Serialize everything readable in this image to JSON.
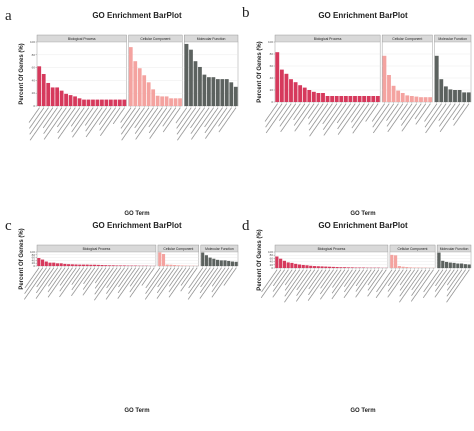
{
  "figure": {
    "panels": [
      "a",
      "b",
      "c",
      "d"
    ]
  },
  "chart_data": [
    {
      "panel": "a",
      "type": "bar",
      "title": "GO Enrichment BarPlot",
      "xlabel": "GO Term",
      "ylabel": "Percent Of Genes (%)",
      "ylim": [
        0,
        100
      ],
      "yticks": [
        0,
        20,
        40,
        60,
        80,
        100
      ],
      "grid": true,
      "facets": [
        {
          "name": "Biological Process",
          "color": "#d6395c",
          "values": [
            62,
            50,
            36,
            29,
            29,
            24,
            19,
            17,
            15,
            12,
            10,
            10,
            10,
            10,
            10,
            10,
            10,
            10,
            10,
            10
          ]
        },
        {
          "name": "Cellular Component",
          "color": "#f4a3a0",
          "values": [
            92,
            70,
            59,
            48,
            37,
            26,
            16,
            15,
            15,
            12,
            12,
            12
          ]
        },
        {
          "name": "Molecular Function",
          "color": "#5c625f",
          "values": [
            97,
            88,
            70,
            61,
            49,
            45,
            45,
            42,
            42,
            42,
            37,
            30
          ]
        }
      ]
    },
    {
      "panel": "b",
      "type": "bar",
      "title": "GO Enrichment BarPlot",
      "xlabel": "GO Term",
      "ylabel": "Percent Of Genes (%)",
      "ylim": [
        0,
        100
      ],
      "yticks": [
        0,
        20,
        40,
        60,
        80,
        100
      ],
      "grid": true,
      "facets": [
        {
          "name": "Biological Process",
          "color": "#d6395c",
          "values": [
            83,
            54,
            47,
            38,
            33,
            28,
            24,
            20,
            17,
            15,
            15,
            10,
            10,
            10,
            10,
            10,
            10,
            10,
            10,
            10,
            10,
            10,
            10
          ]
        },
        {
          "name": "Cellular Component",
          "color": "#f4a3a0",
          "values": [
            77,
            45,
            27,
            19,
            15,
            11,
            10,
            9,
            8,
            8,
            8
          ]
        },
        {
          "name": "Molecular Function",
          "color": "#5c625f",
          "values": [
            77,
            38,
            26,
            21,
            20,
            20,
            16,
            16
          ]
        }
      ]
    },
    {
      "panel": "c",
      "type": "bar",
      "title": "GO Enrichment BarPlot",
      "xlabel": "GO Term",
      "ylabel": "Percent Of Genes (%)",
      "ylim": [
        0,
        100
      ],
      "yticks": [
        0,
        20,
        40,
        60,
        80,
        100
      ],
      "grid": true,
      "facets": [
        {
          "name": "Biological Process",
          "color": "#d6395c",
          "values": [
            57,
            46,
            32,
            24,
            24,
            19,
            19,
            15,
            13,
            12,
            11,
            10,
            10,
            10,
            9,
            9,
            8,
            7,
            6,
            5,
            5,
            4,
            4,
            4,
            3,
            3,
            3,
            2,
            2,
            2,
            1,
            1
          ]
        },
        {
          "name": "Cellular Component",
          "color": "#f4a3a0",
          "values": [
            97,
            86,
            10,
            9,
            7,
            5,
            4,
            3,
            2,
            2,
            1
          ]
        },
        {
          "name": "Molecular Function",
          "color": "#5c625f",
          "values": [
            96,
            77,
            60,
            52,
            44,
            40,
            40,
            36,
            32,
            30
          ]
        }
      ]
    },
    {
      "panel": "d",
      "type": "bar",
      "title": "GO Enrichment BarPlot",
      "xlabel": "GO Term",
      "ylabel": "Percent Of Genes (%)",
      "ylim": [
        0,
        100
      ],
      "yticks": [
        0,
        20,
        40,
        60,
        80,
        100
      ],
      "grid": true,
      "facets": [
        {
          "name": "Biological Process",
          "color": "#d6395c",
          "values": [
            72,
            58,
            45,
            35,
            32,
            26,
            22,
            19,
            17,
            14,
            12,
            11,
            10,
            9,
            8,
            7,
            6,
            5,
            5,
            4,
            4,
            3,
            3,
            3,
            2,
            2,
            2,
            2,
            1,
            1
          ]
        },
        {
          "name": "Cellular Component",
          "color": "#f4a3a0",
          "values": [
            82,
            79,
            12,
            8,
            6,
            4,
            3,
            3,
            2,
            2,
            1,
            1
          ]
        },
        {
          "name": "Molecular Function",
          "color": "#5c625f",
          "values": [
            96,
            45,
            38,
            34,
            32,
            28,
            28,
            24,
            22
          ]
        }
      ]
    }
  ]
}
